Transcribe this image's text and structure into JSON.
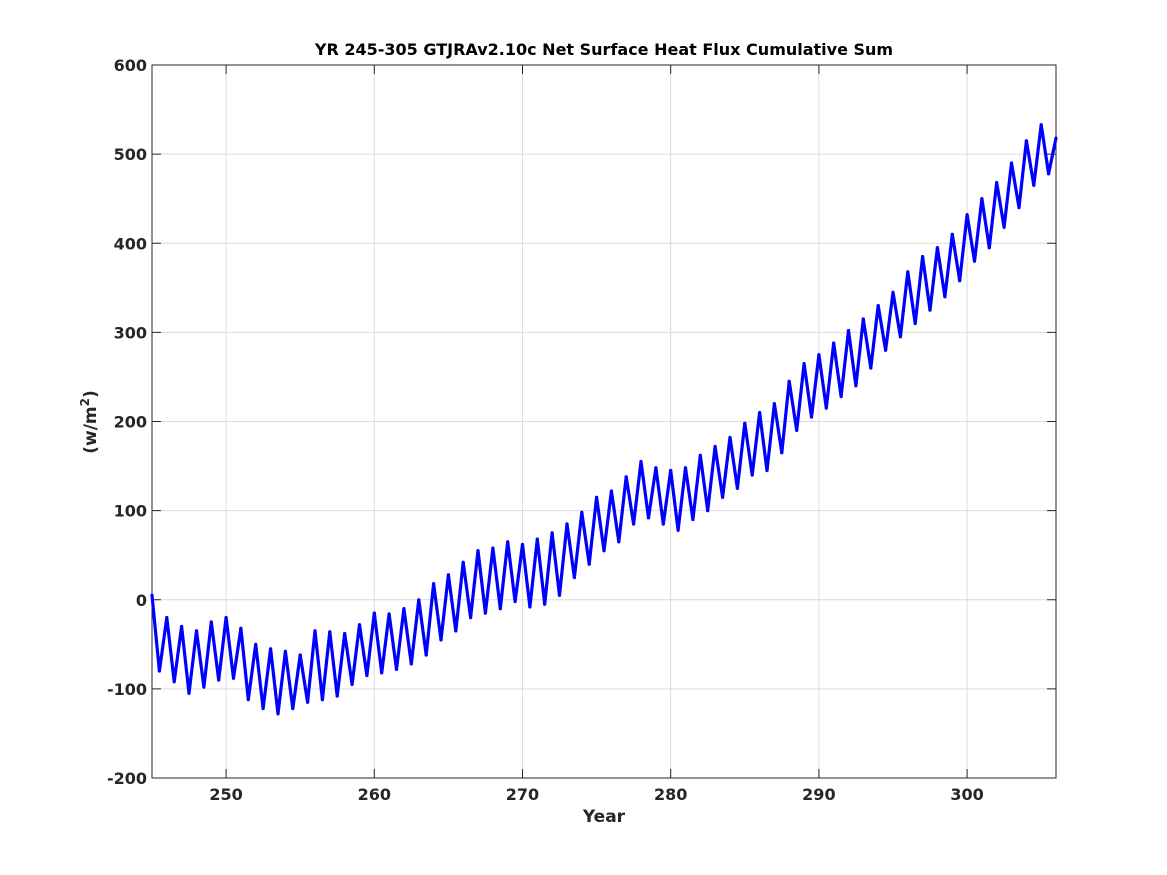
{
  "chart_data": {
    "type": "line",
    "title": "YR 245-305 GTJRAv2.10c Net Surface Heat Flux  Cumulative Sum",
    "xlabel": "Year",
    "ylabel": "(w/m",
    "ylabel_sup": "2",
    "ylabel_close": ")",
    "xlim": [
      245,
      306
    ],
    "ylim": [
      -200,
      600
    ],
    "xticks": [
      250,
      260,
      270,
      280,
      290,
      300
    ],
    "xtick_labels": [
      "250",
      "260",
      "270",
      "280",
      "290",
      "300"
    ],
    "yticks": [
      -200,
      -100,
      0,
      100,
      200,
      300,
      400,
      500,
      600
    ],
    "ytick_labels": [
      "-200",
      "-100",
      "0",
      "100",
      "200",
      "300",
      "400",
      "500",
      "600"
    ],
    "grid": true,
    "line_color": "#0000ff",
    "series": [
      {
        "x": [
          245.0,
          245.5,
          246.0,
          246.5,
          247.0,
          247.5,
          248.0,
          248.5,
          249.0,
          249.5,
          250.0,
          250.5,
          251.0,
          251.5,
          252.0,
          252.5,
          253.0,
          253.5,
          254.0,
          254.5,
          255.0,
          255.5,
          256.0,
          256.5,
          257.0,
          257.5,
          258.0,
          258.5,
          259.0,
          259.5,
          260.0,
          260.5,
          261.0,
          261.5,
          262.0,
          262.5,
          263.0,
          263.5,
          264.0,
          264.5,
          265.0,
          265.5,
          266.0,
          266.5,
          267.0,
          267.5,
          268.0,
          268.5,
          269.0,
          269.5,
          270.0,
          270.5,
          271.0,
          271.5,
          272.0,
          272.5,
          273.0,
          273.5,
          274.0,
          274.5,
          275.0,
          275.5,
          276.0,
          276.5,
          277.0,
          277.5,
          278.0,
          278.5,
          279.0,
          279.5,
          280.0,
          280.5,
          281.0,
          281.5,
          282.0,
          282.5,
          283.0,
          283.5,
          284.0,
          284.5,
          285.0,
          285.5,
          286.0,
          286.5,
          287.0,
          287.5,
          288.0,
          288.5,
          289.0,
          289.5,
          290.0,
          290.5,
          291.0,
          291.5,
          292.0,
          292.5,
          293.0,
          293.5,
          294.0,
          294.5,
          295.0,
          295.5,
          296.0,
          296.5,
          297.0,
          297.5,
          298.0,
          298.5,
          299.0,
          299.5,
          300.0,
          300.5,
          301.0,
          301.5,
          302.0,
          302.5,
          303.0,
          303.5,
          304.0,
          304.5,
          305.0,
          305.5,
          306.0
        ],
        "values": [
          5,
          -80,
          -20,
          -92,
          -30,
          -105,
          -35,
          -98,
          -25,
          -90,
          -20,
          -88,
          -32,
          -112,
          -50,
          -122,
          -55,
          -128,
          -58,
          -122,
          -62,
          -115,
          -35,
          -112,
          -36,
          -108,
          -38,
          -95,
          -28,
          -85,
          -15,
          -82,
          -16,
          -78,
          -10,
          -72,
          0,
          -62,
          18,
          -45,
          28,
          -35,
          42,
          -20,
          55,
          -15,
          58,
          -10,
          65,
          -2,
          62,
          -8,
          68,
          -5,
          75,
          5,
          85,
          25,
          98,
          40,
          115,
          55,
          122,
          65,
          138,
          85,
          155,
          92,
          148,
          85,
          145,
          78,
          148,
          90,
          162,
          100,
          172,
          115,
          182,
          125,
          198,
          140,
          210,
          145,
          220,
          165,
          245,
          190,
          265,
          205,
          275,
          215,
          288,
          228,
          302,
          240,
          315,
          260,
          330,
          280,
          345,
          295,
          368,
          310,
          385,
          325,
          395,
          340,
          410,
          358,
          432,
          380,
          450,
          395,
          468,
          418,
          490,
          440,
          515,
          465,
          533,
          478,
          518
        ]
      }
    ]
  }
}
